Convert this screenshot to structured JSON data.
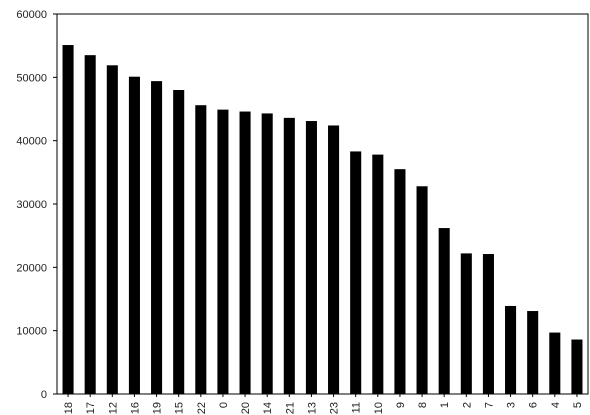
{
  "chart_data": {
    "type": "bar",
    "categories": [
      "18",
      "17",
      "12",
      "16",
      "19",
      "15",
      "22",
      "0",
      "20",
      "14",
      "21",
      "13",
      "23",
      "11",
      "10",
      "9",
      "8",
      "1",
      "2",
      "7",
      "3",
      "6",
      "4",
      "5"
    ],
    "values": [
      55100,
      53500,
      51900,
      50100,
      49400,
      48000,
      45600,
      44900,
      44600,
      44300,
      43600,
      43100,
      42400,
      38300,
      37800,
      35500,
      32800,
      26200,
      22200,
      22100,
      13900,
      13100,
      9700,
      8600
    ],
    "yticks": [
      "0",
      "10000",
      "20000",
      "30000",
      "40000",
      "50000",
      "60000"
    ],
    "ylim": [
      0,
      60000
    ],
    "title": "",
    "xlabel": "",
    "ylabel": "",
    "bar_color": "#000000",
    "grid": false,
    "legend": false
  }
}
